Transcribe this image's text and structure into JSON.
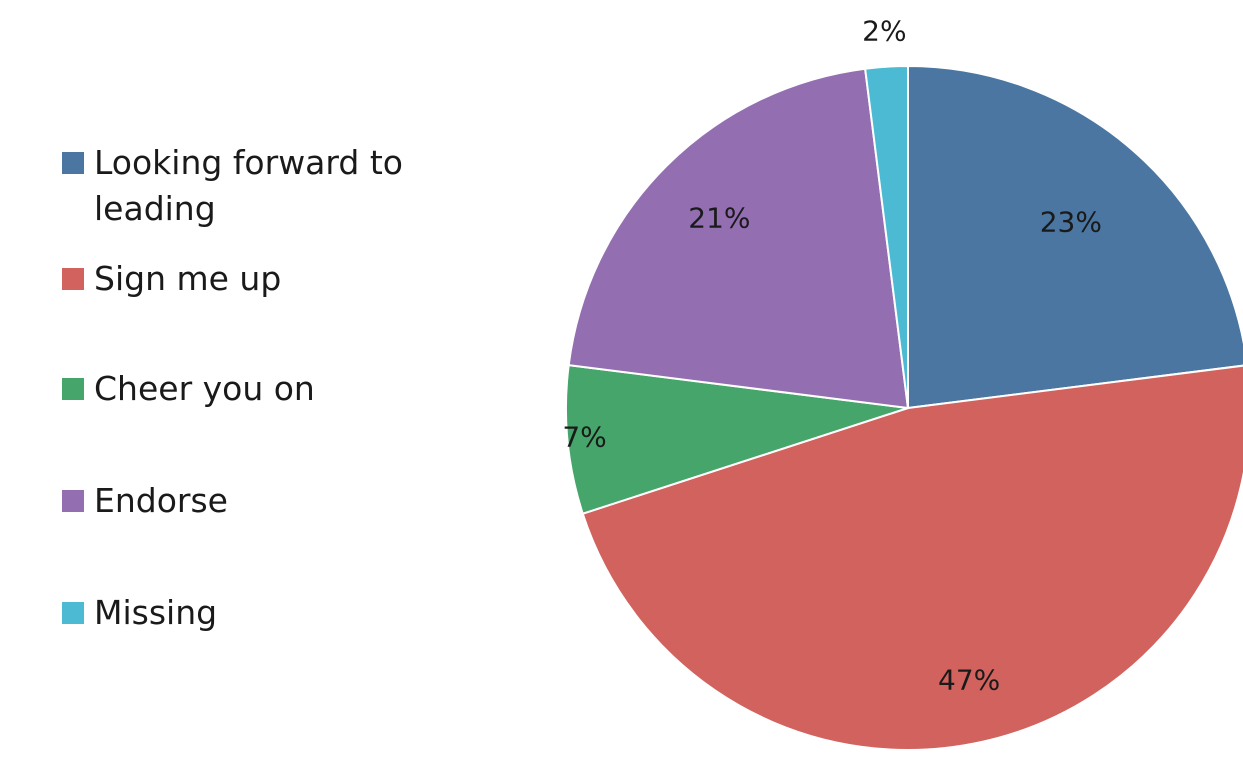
{
  "chart_data": {
    "type": "pie",
    "slices": [
      {
        "label": "Looking forward to leading",
        "value": 23,
        "display": "23%",
        "color": "#4a76a1"
      },
      {
        "label": "Sign me up",
        "value": 47,
        "display": "47%",
        "color": "#d1625d"
      },
      {
        "label": "Cheer you on",
        "value": 7,
        "display": "7%",
        "color": "#45a56a"
      },
      {
        "label": "Endorse",
        "value": 21,
        "display": "21%",
        "color": "#936fb2"
      },
      {
        "label": "Missing",
        "value": 2,
        "display": "2%",
        "color": "#4bbad2"
      }
    ],
    "legend_position": "left"
  }
}
